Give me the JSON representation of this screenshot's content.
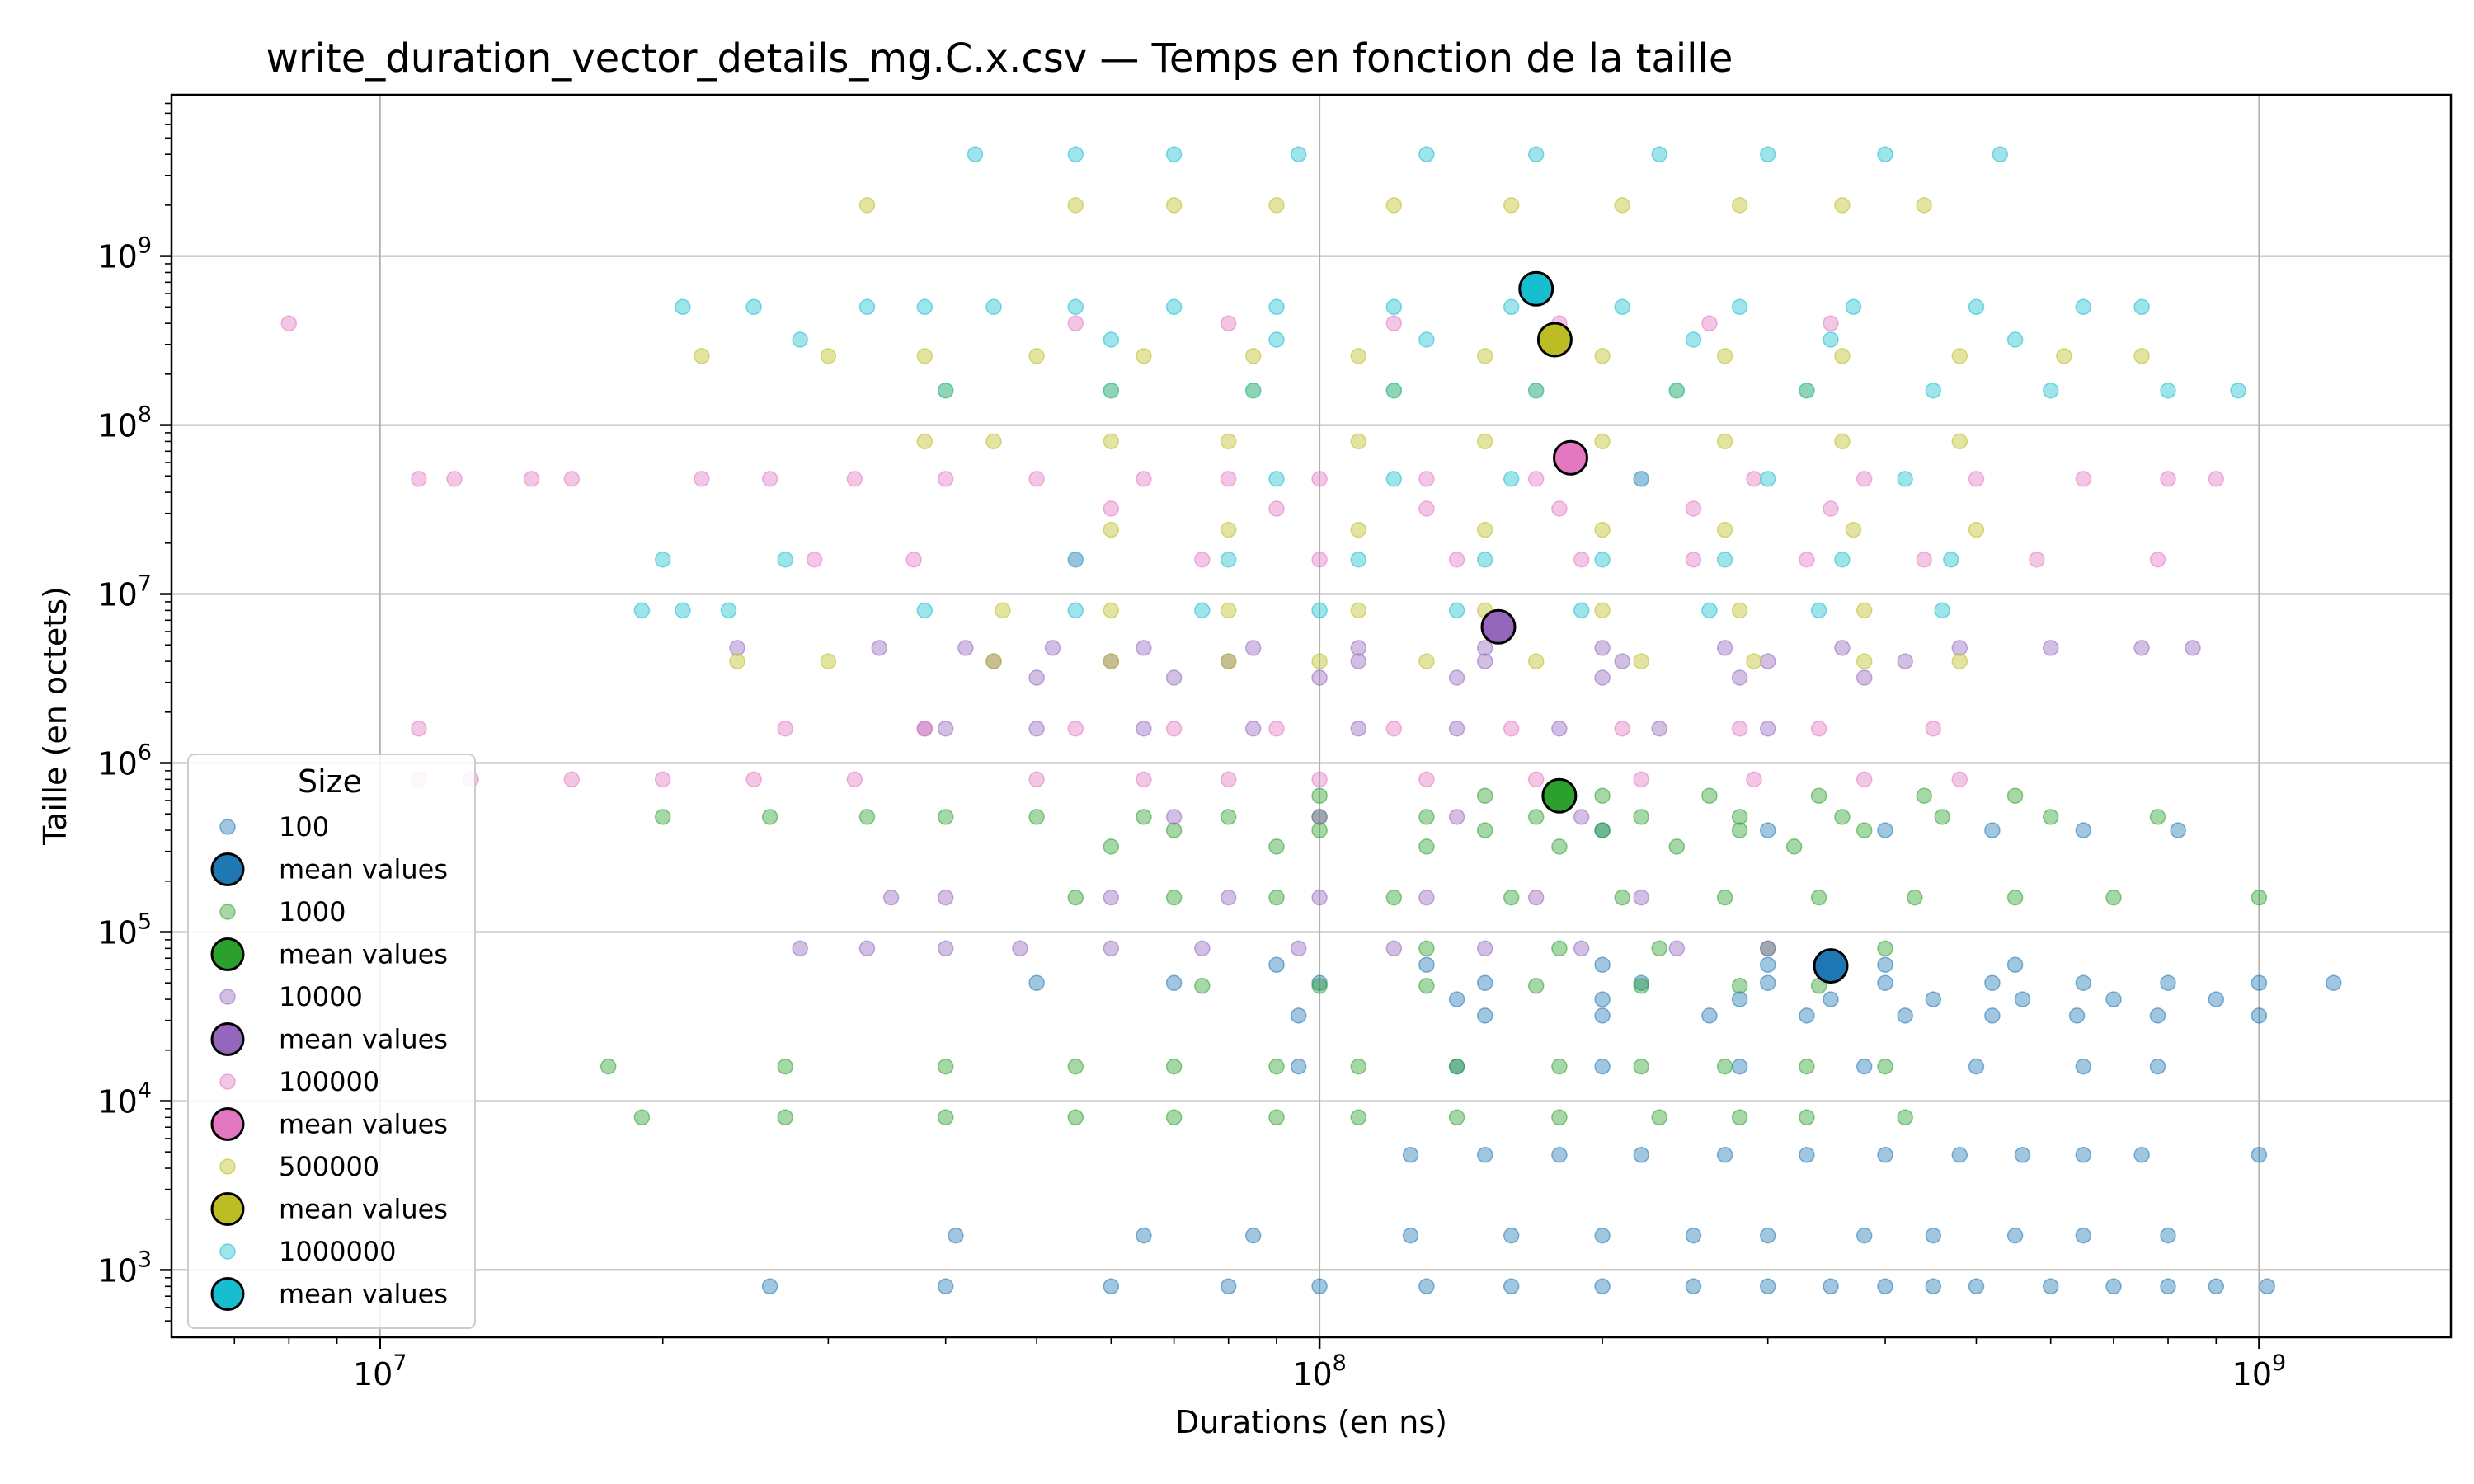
{
  "chart_data": {
    "type": "scatter",
    "title": "write_duration_vector_details_mg.C.x.csv — Temps en fonction de la taille",
    "xlabel": "Durations (en ns)",
    "ylabel": "Taille (en octets)",
    "x_scale": "log",
    "y_scale": "log",
    "xlim": [
      6000000,
      1600000000
    ],
    "ylim": [
      400,
      9000000000
    ],
    "grid": true,
    "x_ticks": [
      {
        "value": 10000000,
        "label": "10",
        "exp": "7"
      },
      {
        "value": 100000000,
        "label": "10",
        "exp": "8"
      },
      {
        "value": 1000000000,
        "label": "10",
        "exp": "9"
      }
    ],
    "y_ticks": [
      {
        "value": 1000,
        "label": "10",
        "exp": "3"
      },
      {
        "value": 10000,
        "label": "10",
        "exp": "4"
      },
      {
        "value": 100000,
        "label": "10",
        "exp": "5"
      },
      {
        "value": 1000000,
        "label": "10",
        "exp": "6"
      },
      {
        "value": 10000000,
        "label": "10",
        "exp": "7"
      },
      {
        "value": 100000000,
        "label": "10",
        "exp": "8"
      },
      {
        "value": 1000000000,
        "label": "10",
        "exp": "9"
      }
    ],
    "legend": {
      "title": "Size",
      "position": "lower-left",
      "entries": [
        {
          "label": "100",
          "kind": "points",
          "color": "#1f77b4"
        },
        {
          "label": "mean values",
          "kind": "mean",
          "color": "#1f77b4"
        },
        {
          "label": "1000",
          "kind": "points",
          "color": "#2ca02c"
        },
        {
          "label": "mean values",
          "kind": "mean",
          "color": "#2ca02c"
        },
        {
          "label": "10000",
          "kind": "points",
          "color": "#9467bd"
        },
        {
          "label": "mean values",
          "kind": "mean",
          "color": "#9467bd"
        },
        {
          "label": "100000",
          "kind": "points",
          "color": "#e377c2"
        },
        {
          "label": "mean values",
          "kind": "mean",
          "color": "#e377c2"
        },
        {
          "label": "500000",
          "kind": "points",
          "color": "#bcbd22"
        },
        {
          "label": "mean values",
          "kind": "mean",
          "color": "#bcbd22"
        },
        {
          "label": "1000000",
          "kind": "points",
          "color": "#17becf"
        },
        {
          "label": "mean values",
          "kind": "mean",
          "color": "#17becf"
        }
      ]
    },
    "series": [
      {
        "name": "100",
        "color": "#1f77b4",
        "mean": {
          "x": 350000000,
          "y": 63000
        },
        "bands": [
          {
            "y": 800,
            "x": [
              26000000,
              40000000,
              60000000,
              80000000,
              100000000,
              130000000,
              160000000,
              200000000,
              250000000,
              300000000,
              350000000,
              400000000,
              450000000,
              500000000,
              600000000,
              700000000,
              800000000,
              900000000,
              1020000000
            ]
          },
          {
            "y": 1600,
            "x": [
              41000000,
              65000000,
              85000000,
              125000000,
              160000000,
              200000000,
              250000000,
              300000000,
              380000000,
              450000000,
              550000000,
              650000000,
              800000000
            ]
          },
          {
            "y": 4800,
            "x": [
              125000000,
              150000000,
              180000000,
              220000000,
              270000000,
              330000000,
              400000000,
              480000000,
              560000000,
              650000000,
              750000000,
              1000000000
            ]
          },
          {
            "y": 16000,
            "x": [
              95000000,
              140000000,
              200000000,
              280000000,
              380000000,
              500000000,
              650000000,
              780000000
            ]
          },
          {
            "y": 32000,
            "x": [
              95000000,
              150000000,
              200000000,
              260000000,
              330000000,
              420000000,
              520000000,
              640000000,
              780000000,
              1000000000
            ]
          },
          {
            "y": 40000,
            "x": [
              140000000,
              200000000,
              280000000,
              350000000,
              450000000,
              560000000,
              700000000,
              900000000
            ]
          },
          {
            "y": 50000,
            "x": [
              50000000,
              70000000,
              100000000,
              150000000,
              220000000,
              300000000,
              400000000,
              520000000,
              650000000,
              800000000,
              1000000000,
              1200000000
            ]
          },
          {
            "y": 64000,
            "x": [
              90000000,
              130000000,
              200000000,
              300000000,
              400000000,
              550000000
            ]
          },
          {
            "y": 400000,
            "x": [
              200000000,
              300000000,
              400000000,
              520000000,
              650000000,
              820000000
            ]
          }
        ]
      },
      {
        "name": "1000",
        "color": "#2ca02c",
        "mean": {
          "x": 180000000,
          "y": 640000
        },
        "bands": [
          {
            "y": 8000,
            "x": [
              19000000,
              27000000,
              40000000,
              55000000,
              70000000,
              90000000,
              110000000,
              140000000,
              180000000,
              230000000,
              280000000,
              330000000,
              420000000
            ]
          },
          {
            "y": 16000,
            "x": [
              17500000,
              27000000,
              40000000,
              55000000,
              70000000,
              90000000,
              110000000,
              140000000,
              180000000,
              220000000,
              270000000,
              330000000,
              400000000
            ]
          },
          {
            "y": 48000,
            "x": [
              75000000,
              100000000,
              130000000,
              170000000,
              220000000,
              280000000,
              340000000
            ]
          },
          {
            "y": 80000,
            "x": [
              130000000,
              180000000,
              230000000,
              300000000,
              400000000
            ]
          },
          {
            "y": 160000,
            "x": [
              55000000,
              70000000,
              90000000,
              120000000,
              160000000,
              210000000,
              270000000,
              340000000,
              430000000,
              550000000,
              700000000,
              1000000000
            ]
          },
          {
            "y": 320000,
            "x": [
              60000000,
              90000000,
              130000000,
              180000000,
              240000000,
              320000000
            ]
          },
          {
            "y": 400000,
            "x": [
              70000000,
              100000000,
              150000000,
              200000000,
              280000000,
              380000000
            ]
          },
          {
            "y": 480000,
            "x": [
              20000000,
              26000000,
              33000000,
              40000000,
              50000000,
              65000000,
              80000000,
              100000000,
              130000000,
              170000000,
              220000000,
              280000000,
              360000000,
              460000000,
              600000000,
              780000000
            ]
          },
          {
            "y": 640000,
            "x": [
              100000000,
              150000000,
              200000000,
              260000000,
              340000000,
              440000000,
              550000000
            ]
          }
        ]
      },
      {
        "name": "10000",
        "color": "#9467bd",
        "mean": {
          "x": 155000000,
          "y": 6400000
        },
        "bands": [
          {
            "y": 80000,
            "x": [
              28000000,
              33000000,
              40000000,
              48000000,
              60000000,
              75000000,
              95000000,
              120000000,
              150000000,
              190000000,
              240000000,
              300000000
            ]
          },
          {
            "y": 160000,
            "x": [
              35000000,
              40000000,
              60000000,
              80000000,
              100000000,
              130000000,
              170000000,
              220000000
            ]
          },
          {
            "y": 480000,
            "x": [
              70000000,
              100000000,
              140000000,
              190000000
            ]
          },
          {
            "y": 1600000,
            "x": [
              38000000,
              40000000,
              50000000,
              65000000,
              85000000,
              110000000,
              140000000,
              180000000,
              230000000,
              300000000
            ]
          },
          {
            "y": 3200000,
            "x": [
              50000000,
              70000000,
              100000000,
              140000000,
              200000000,
              280000000,
              380000000
            ]
          },
          {
            "y": 4000000,
            "x": [
              45000000,
              60000000,
              80000000,
              110000000,
              150000000,
              210000000,
              300000000,
              420000000
            ]
          },
          {
            "y": 4800000,
            "x": [
              24000000,
              34000000,
              42000000,
              52000000,
              65000000,
              85000000,
              110000000,
              150000000,
              200000000,
              270000000,
              360000000,
              480000000,
              600000000,
              750000000,
              850000000
            ]
          }
        ]
      },
      {
        "name": "100000",
        "color": "#e377c2",
        "mean": {
          "x": 185000000,
          "y": 64000000
        },
        "bands": [
          {
            "y": 800000,
            "x": [
              11000000,
              12500000,
              16000000,
              20000000,
              25000000,
              32000000,
              50000000,
              65000000,
              80000000,
              100000000,
              130000000,
              170000000,
              220000000,
              290000000,
              380000000,
              480000000
            ]
          },
          {
            "y": 1600000,
            "x": [
              11000000,
              27000000,
              38000000,
              55000000,
              70000000,
              90000000,
              120000000,
              160000000,
              210000000,
              280000000,
              340000000,
              450000000
            ]
          },
          {
            "y": 16000000,
            "x": [
              29000000,
              37000000,
              55000000,
              75000000,
              100000000,
              140000000,
              190000000,
              250000000,
              330000000,
              440000000,
              580000000,
              780000000
            ]
          },
          {
            "y": 32000000,
            "x": [
              60000000,
              90000000,
              130000000,
              180000000,
              250000000,
              350000000
            ]
          },
          {
            "y": 48000000,
            "x": [
              11000000,
              12000000,
              14500000,
              16000000,
              22000000,
              26000000,
              32000000,
              40000000,
              50000000,
              65000000,
              80000000,
              100000000,
              130000000,
              170000000,
              220000000,
              290000000,
              380000000,
              500000000,
              650000000,
              800000000,
              900000000
            ]
          },
          {
            "y": 400000000,
            "x": [
              8000000,
              55000000,
              80000000,
              120000000,
              180000000,
              260000000,
              350000000
            ]
          }
        ]
      },
      {
        "name": "500000",
        "color": "#bcbd22",
        "mean": {
          "x": 178000000,
          "y": 320000000
        },
        "bands": [
          {
            "y": 4000000,
            "x": [
              24000000,
              30000000,
              45000000,
              60000000,
              80000000,
              100000000,
              130000000,
              170000000,
              220000000,
              290000000,
              380000000,
              480000000
            ]
          },
          {
            "y": 8000000,
            "x": [
              46000000,
              60000000,
              80000000,
              110000000,
              150000000,
              200000000,
              280000000,
              380000000
            ]
          },
          {
            "y": 24000000,
            "x": [
              60000000,
              80000000,
              110000000,
              150000000,
              200000000,
              270000000,
              370000000,
              500000000
            ]
          },
          {
            "y": 80000000,
            "x": [
              38000000,
              45000000,
              60000000,
              80000000,
              110000000,
              150000000,
              200000000,
              270000000,
              360000000,
              480000000
            ]
          },
          {
            "y": 160000000,
            "x": [
              40000000,
              60000000,
              85000000,
              120000000,
              170000000,
              240000000,
              330000000
            ]
          },
          {
            "y": 256000000,
            "x": [
              22000000,
              30000000,
              38000000,
              50000000,
              65000000,
              85000000,
              110000000,
              150000000,
              200000000,
              270000000,
              360000000,
              480000000,
              620000000,
              750000000
            ]
          },
          {
            "y": 2000000000,
            "x": [
              33000000,
              55000000,
              70000000,
              90000000,
              120000000,
              160000000,
              210000000,
              280000000,
              360000000,
              440000000
            ]
          }
        ]
      },
      {
        "name": "1000000",
        "color": "#17becf",
        "mean": {
          "x": 170000000,
          "y": 640000000
        },
        "bands": [
          {
            "y": 8000000,
            "x": [
              19000000,
              21000000,
              23500000,
              38000000,
              55000000,
              75000000,
              100000000,
              140000000,
              190000000,
              260000000,
              340000000,
              460000000
            ]
          },
          {
            "y": 16000000,
            "x": [
              20000000,
              27000000,
              55000000,
              80000000,
              110000000,
              150000000,
              200000000,
              270000000,
              360000000,
              470000000
            ]
          },
          {
            "y": 48000000,
            "x": [
              90000000,
              120000000,
              160000000,
              220000000,
              300000000,
              420000000
            ]
          },
          {
            "y": 160000000,
            "x": [
              40000000,
              60000000,
              85000000,
              120000000,
              170000000,
              240000000,
              330000000,
              450000000,
              600000000,
              800000000,
              950000000
            ]
          },
          {
            "y": 320000000,
            "x": [
              28000000,
              60000000,
              90000000,
              130000000,
              180000000,
              250000000,
              350000000,
              550000000
            ]
          },
          {
            "y": 500000000,
            "x": [
              21000000,
              25000000,
              33000000,
              38000000,
              45000000,
              55000000,
              70000000,
              90000000,
              120000000,
              160000000,
              210000000,
              280000000,
              370000000,
              500000000,
              650000000,
              750000000
            ]
          },
          {
            "y": 4000000000,
            "x": [
              43000000,
              55000000,
              70000000,
              95000000,
              130000000,
              170000000,
              230000000,
              300000000,
              400000000,
              530000000
            ]
          }
        ]
      }
    ]
  }
}
